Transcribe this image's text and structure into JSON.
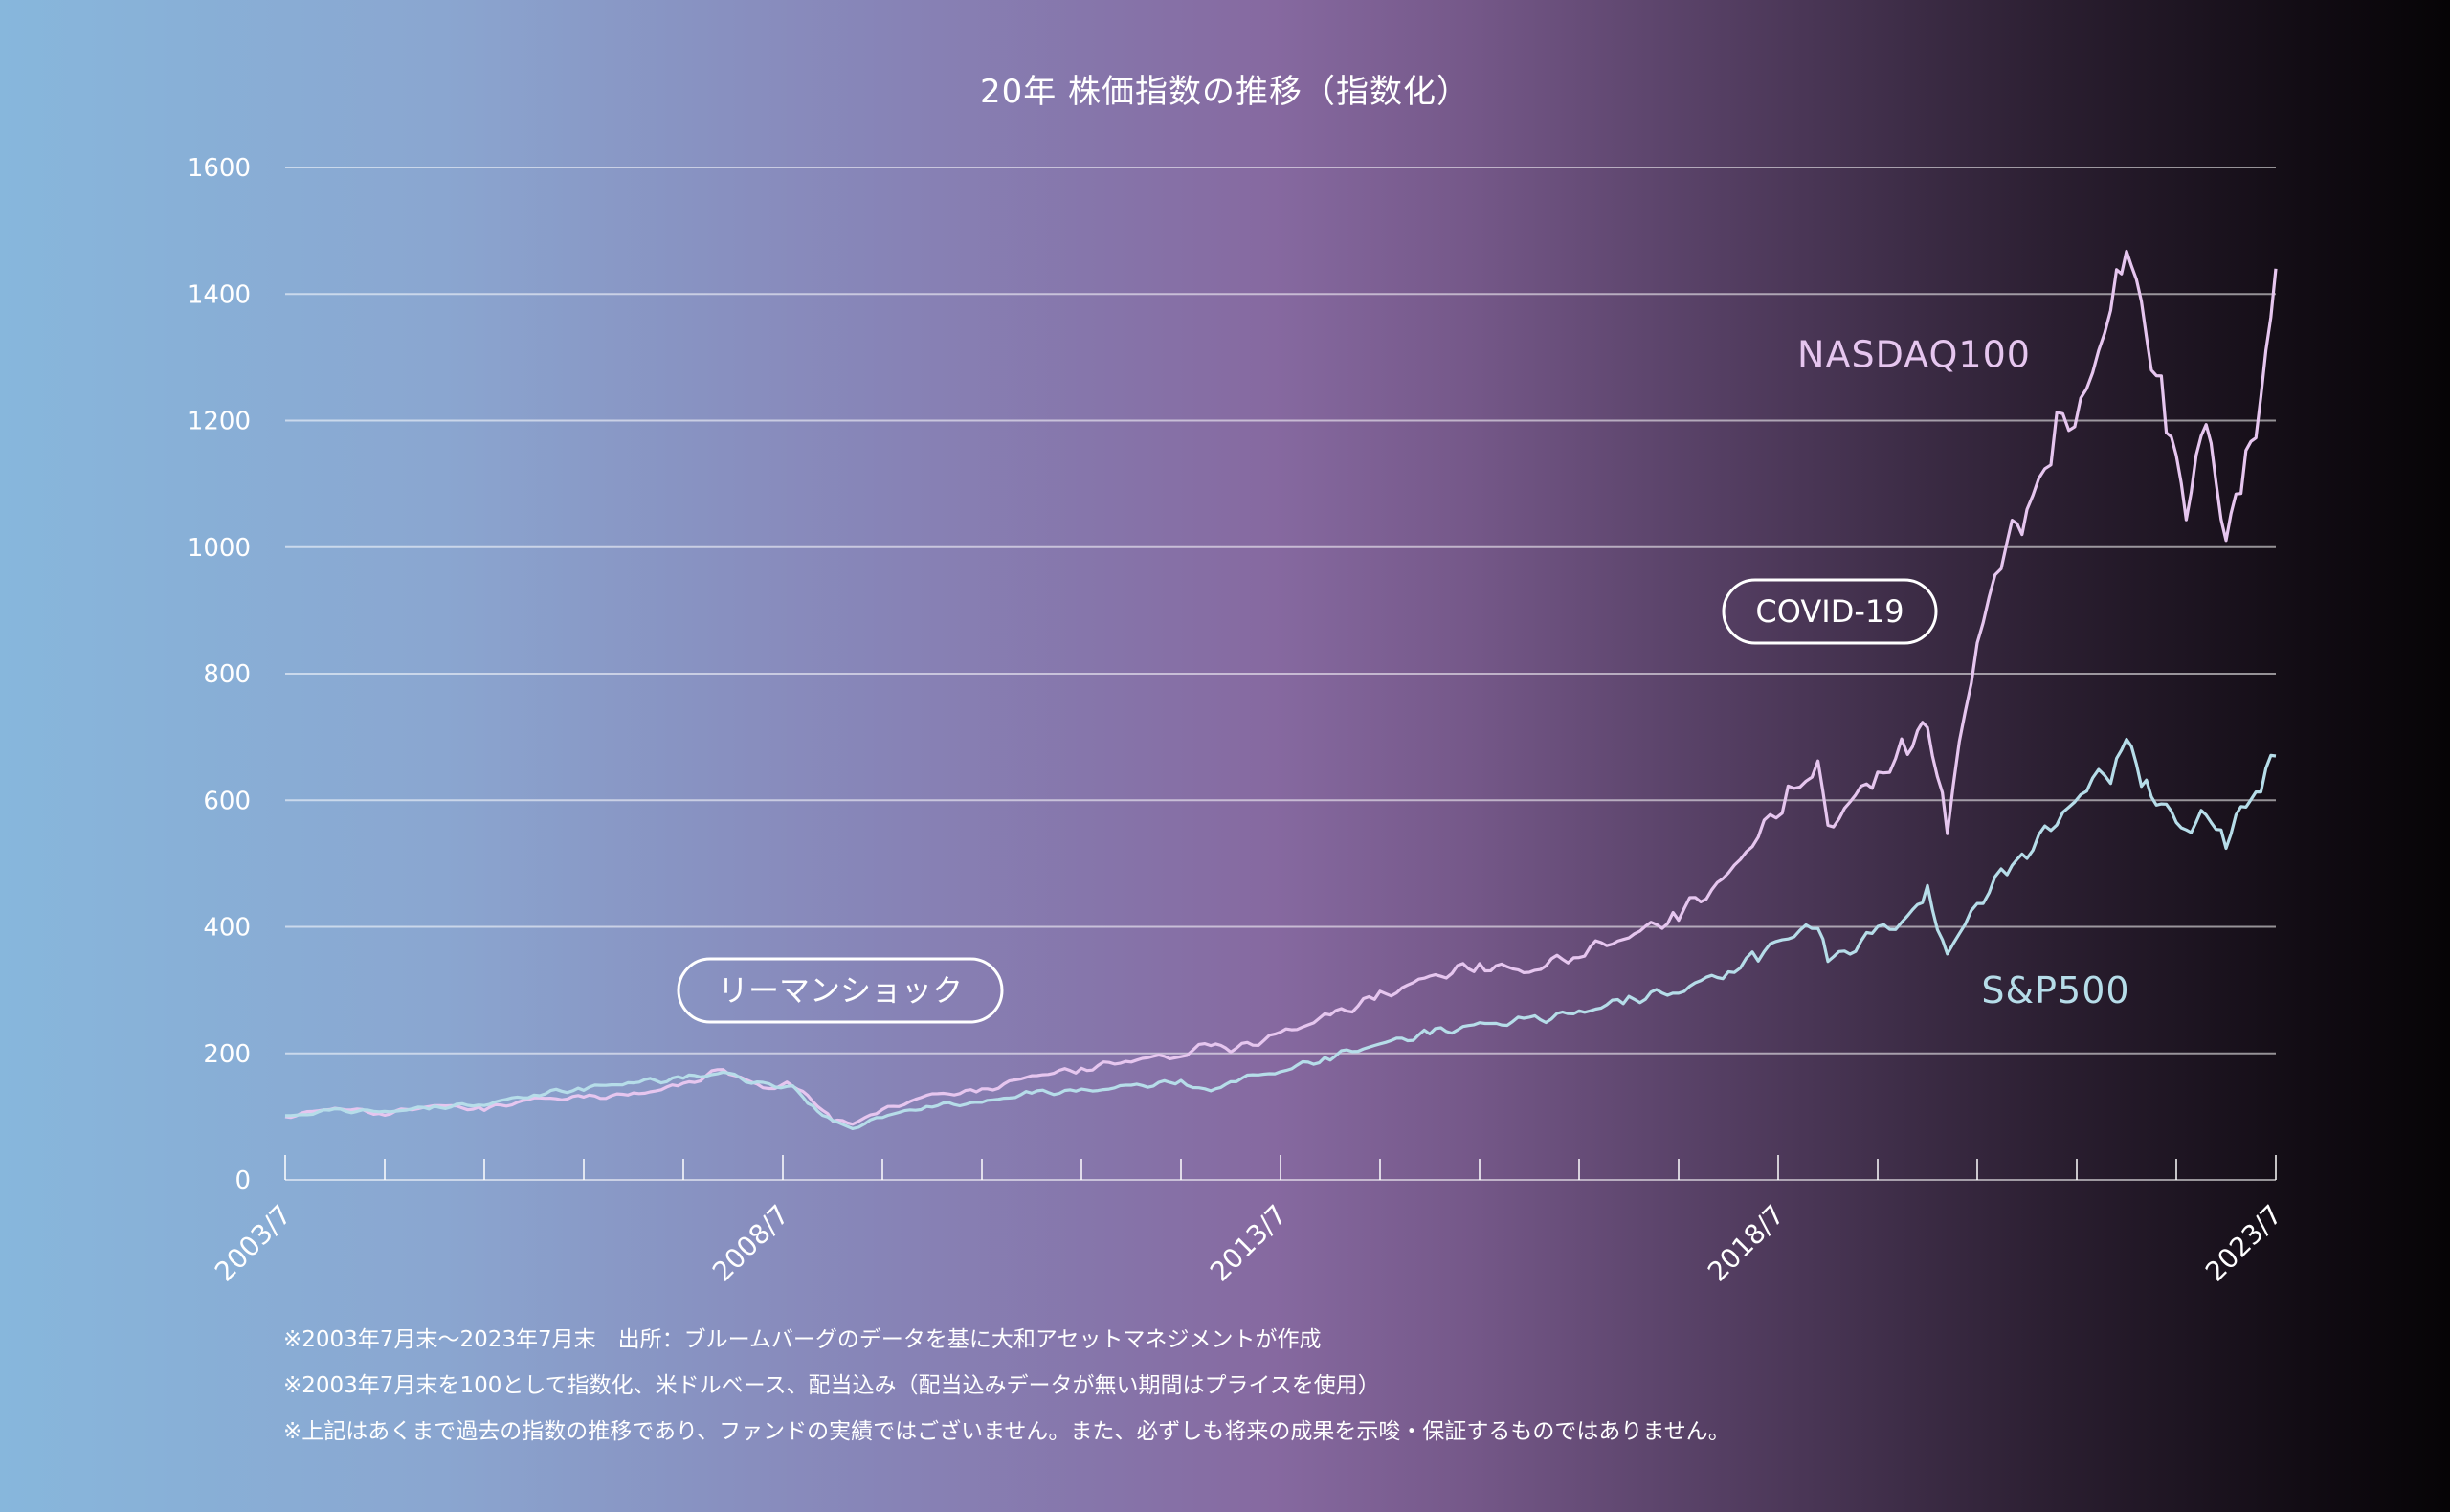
{
  "chart_data": {
    "type": "line",
    "title": "20年 株価指数の推移（指数化）",
    "y_ticks": [
      "1600",
      "1400",
      "1200",
      "1000",
      "800",
      "600",
      "400",
      "200",
      "0"
    ],
    "ylim": [
      0,
      1600
    ],
    "x_tick_labels": [
      "2003/7",
      "2008/7",
      "2013/7",
      "2018/7",
      "2023/7"
    ],
    "xlim": [
      2003.5,
      2023.5
    ],
    "grid": true,
    "series": [
      {
        "name": "NASDAQ100",
        "color": "#e6c6ef",
        "points": [
          [
            2003.5,
            100
          ],
          [
            2004.0,
            114
          ],
          [
            2004.5,
            105
          ],
          [
            2005.0,
            118
          ],
          [
            2005.5,
            112
          ],
          [
            2006.0,
            128
          ],
          [
            2006.5,
            130
          ],
          [
            2007.0,
            135
          ],
          [
            2007.5,
            150
          ],
          [
            2007.9,
            175
          ],
          [
            2008.3,
            145
          ],
          [
            2008.6,
            152
          ],
          [
            2008.8,
            125
          ],
          [
            2009.0,
            95
          ],
          [
            2009.2,
            88
          ],
          [
            2009.5,
            110
          ],
          [
            2010.0,
            135
          ],
          [
            2010.5,
            140
          ],
          [
            2011.0,
            165
          ],
          [
            2011.5,
            175
          ],
          [
            2012.0,
            190
          ],
          [
            2012.5,
            198
          ],
          [
            2012.8,
            215
          ],
          [
            2013.0,
            205
          ],
          [
            2013.5,
            230
          ],
          [
            2014.0,
            260
          ],
          [
            2014.5,
            290
          ],
          [
            2015.0,
            320
          ],
          [
            2015.5,
            340
          ],
          [
            2016.0,
            330
          ],
          [
            2016.5,
            360
          ],
          [
            2017.0,
            385
          ],
          [
            2017.5,
            420
          ],
          [
            2018.0,
            480
          ],
          [
            2018.3,
            540
          ],
          [
            2018.6,
            610
          ],
          [
            2018.9,
            650
          ],
          [
            2019.0,
            560
          ],
          [
            2019.5,
            640
          ],
          [
            2019.8,
            690
          ],
          [
            2020.0,
            720
          ],
          [
            2020.2,
            560
          ],
          [
            2020.5,
            850
          ],
          [
            2020.8,
            1000
          ],
          [
            2021.0,
            1050
          ],
          [
            2021.3,
            1180
          ],
          [
            2021.6,
            1250
          ],
          [
            2021.9,
            1420
          ],
          [
            2022.0,
            1495
          ],
          [
            2022.2,
            1350
          ],
          [
            2022.4,
            1200
          ],
          [
            2022.6,
            1060
          ],
          [
            2022.8,
            1180
          ],
          [
            2023.0,
            1010
          ],
          [
            2023.2,
            1120
          ],
          [
            2023.35,
            1230
          ],
          [
            2023.5,
            1440
          ]
        ]
      },
      {
        "name": "S&P500",
        "color": "#b6dde9",
        "points": [
          [
            2003.5,
            100
          ],
          [
            2004.0,
            110
          ],
          [
            2004.5,
            108
          ],
          [
            2005.0,
            115
          ],
          [
            2005.5,
            120
          ],
          [
            2006.0,
            135
          ],
          [
            2006.5,
            145
          ],
          [
            2007.0,
            155
          ],
          [
            2007.5,
            160
          ],
          [
            2007.9,
            170
          ],
          [
            2008.3,
            150
          ],
          [
            2008.6,
            148
          ],
          [
            2008.8,
            115
          ],
          [
            2009.0,
            95
          ],
          [
            2009.2,
            82
          ],
          [
            2009.5,
            100
          ],
          [
            2010.0,
            118
          ],
          [
            2010.5,
            122
          ],
          [
            2011.0,
            138
          ],
          [
            2011.5,
            140
          ],
          [
            2012.0,
            148
          ],
          [
            2012.5,
            155
          ],
          [
            2012.8,
            140
          ],
          [
            2013.0,
            158
          ],
          [
            2013.5,
            172
          ],
          [
            2014.0,
            195
          ],
          [
            2014.5,
            215
          ],
          [
            2015.0,
            232
          ],
          [
            2015.5,
            245
          ],
          [
            2016.0,
            252
          ],
          [
            2016.5,
            265
          ],
          [
            2017.0,
            285
          ],
          [
            2017.5,
            300
          ],
          [
            2018.0,
            330
          ],
          [
            2018.3,
            355
          ],
          [
            2018.6,
            385
          ],
          [
            2018.9,
            398
          ],
          [
            2019.0,
            345
          ],
          [
            2019.5,
            390
          ],
          [
            2019.8,
            415
          ],
          [
            2020.0,
            455
          ],
          [
            2020.2,
            360
          ],
          [
            2020.5,
            440
          ],
          [
            2020.8,
            490
          ],
          [
            2021.0,
            520
          ],
          [
            2021.3,
            560
          ],
          [
            2021.6,
            620
          ],
          [
            2021.9,
            650
          ],
          [
            2022.0,
            690
          ],
          [
            2022.2,
            620
          ],
          [
            2022.4,
            590
          ],
          [
            2022.6,
            560
          ],
          [
            2022.8,
            580
          ],
          [
            2023.0,
            540
          ],
          [
            2023.2,
            590
          ],
          [
            2023.35,
            620
          ],
          [
            2023.5,
            670
          ]
        ]
      }
    ],
    "annotations": [
      {
        "label": "リーマンショック",
        "x": 2008.7,
        "y": 300
      },
      {
        "label": "COVID-19",
        "x": 2019.3,
        "y": 900
      }
    ]
  },
  "footnotes": [
    "※2003年7月末～2023年7月末　出所：ブルームバーグのデータを基に大和アセットマネジメントが作成",
    "※2003年7月末を100として指数化、米ドルベース、配当込み（配当込みデータが無い期間はプライスを使用）",
    "※上記はあくまで過去の指数の推移であり、ファンドの実績ではございません。また、必ずしも将来の成果を示唆・保証するものではありません。"
  ]
}
